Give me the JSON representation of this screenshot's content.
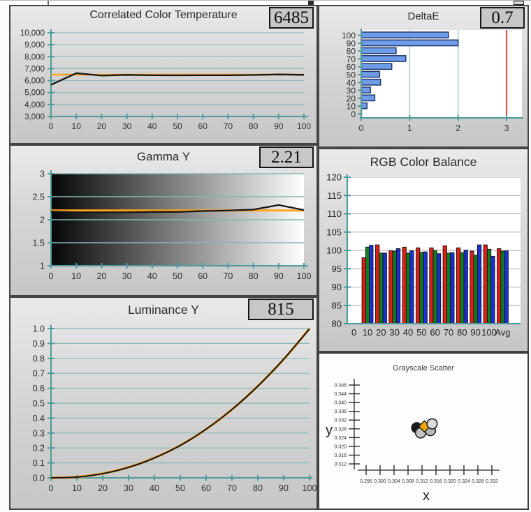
{
  "top_strip": {
    "description": "clipped bottom edge of toolbar above report"
  },
  "panels": {
    "cct": {
      "title": "Correlated Color Temperature",
      "value": "6485"
    },
    "deltae": {
      "title": "DeltaE",
      "value": "0.7"
    },
    "gamma": {
      "title": "Gamma Y",
      "value": "2.21"
    },
    "rgb": {
      "title": "RGB Color Balance"
    },
    "luminance": {
      "title": "Luminance Y",
      "value": "815"
    },
    "scatter": {
      "title": "Grayscale Scatter",
      "xlabel": "x",
      "ylabel": "y"
    }
  },
  "colors": {
    "teal_axis": "#4f9a9a",
    "teal_grid": "#85b7b7",
    "orange_target": "#ffa51e",
    "black_line": "#161616",
    "bar_blue": "#6f9ce8",
    "bar_blue_border": "#20396b",
    "ref_red": "#e0504d",
    "grid_gray": "#a9a9a9",
    "label_dark": "#2d2d2d",
    "scatter_axis": "#2b2b2b"
  },
  "chart_data": [
    {
      "id": "cct",
      "type": "line",
      "title": "Correlated Color Temperature",
      "value_box": "6485",
      "xlabel_ticks": [
        0,
        10,
        20,
        30,
        40,
        50,
        60,
        70,
        80,
        90,
        100
      ],
      "ytick_labels": [
        "10,000",
        "9,000",
        "8,000",
        "7,000",
        "6,000",
        "5,000",
        "4,000",
        "3,000"
      ],
      "yticks": [
        10000,
        9000,
        8000,
        7000,
        6000,
        5000,
        4000,
        3000
      ],
      "ylim": [
        3000,
        10000
      ],
      "xlim": [
        0,
        100
      ],
      "x": [
        0,
        10,
        20,
        30,
        40,
        50,
        60,
        70,
        80,
        90,
        100
      ],
      "measured": [
        5650,
        6620,
        6420,
        6480,
        6450,
        6440,
        6450,
        6450,
        6470,
        6520,
        6485
      ],
      "target_line": 6500
    },
    {
      "id": "deltae",
      "type": "bar-horizontal",
      "title": "DeltaE",
      "value_box": "0.7",
      "categories": [
        "100",
        "90",
        "80",
        "70",
        "60",
        "50",
        "40",
        "30",
        "20",
        "10",
        "0"
      ],
      "values": [
        1.8,
        2.0,
        0.72,
        0.92,
        0.63,
        0.38,
        0.4,
        0.19,
        0.28,
        0.12,
        0
      ],
      "xlim": [
        0,
        3
      ],
      "xticks": [
        0,
        1,
        2,
        3
      ],
      "tolerance_line": 3
    },
    {
      "id": "gamma",
      "type": "line",
      "title": "Gamma Y",
      "value_box": "2.21",
      "ytick_labels": [
        "3",
        "2.5",
        "2",
        "1.5",
        "1"
      ],
      "yticks": [
        3,
        2.5,
        2,
        1.5,
        1
      ],
      "ylim": [
        1,
        3
      ],
      "xlim": [
        0,
        100
      ],
      "xlabel_ticks": [
        0,
        10,
        20,
        30,
        40,
        50,
        60,
        70,
        80,
        90,
        100
      ],
      "x": [
        0,
        10,
        20,
        30,
        40,
        50,
        60,
        70,
        80,
        90,
        100
      ],
      "measured": [
        2.18,
        2.16,
        2.16,
        2.16,
        2.17,
        2.17,
        2.19,
        2.2,
        2.22,
        2.32,
        2.21
      ],
      "target_line": 2.2,
      "plot_background": "black-to-white horizontal gradient"
    },
    {
      "id": "rgb",
      "type": "grouped-bar",
      "title": "RGB Color Balance",
      "categories": [
        "0",
        "10",
        "20",
        "30",
        "40",
        "50",
        "60",
        "70",
        "80",
        "90",
        "100",
        "Avg"
      ],
      "ylim": [
        80,
        120
      ],
      "yticks": [
        120,
        115,
        110,
        105,
        100,
        95,
        90,
        85,
        80
      ],
      "series": [
        {
          "name": "Red",
          "color": "#dd1f15",
          "values": [
            null,
            98.0,
            101.5,
            99.9,
            100.9,
            100.7,
            100.7,
            101.3,
            100.7,
            99.8,
            101.5,
            100.5
          ]
        },
        {
          "name": "Green",
          "color": "#0f7d20",
          "values": [
            null,
            100.9,
            99.3,
            99.8,
            99.3,
            99.5,
            100.0,
            99.3,
            99.4,
            98.7,
            100.3,
            99.8
          ]
        },
        {
          "name": "Blue",
          "color": "#1b2fd4",
          "values": [
            null,
            101.4,
            99.3,
            100.5,
            99.9,
            99.6,
            99.1,
            99.4,
            100.1,
            101.5,
            98.4,
            99.9
          ]
        }
      ]
    },
    {
      "id": "luminance",
      "type": "line",
      "title": "Luminance Y",
      "value_box": "815",
      "ytick_labels": [
        "1.0",
        "0.9",
        "0.8",
        "0.7",
        "0.6",
        "0.5",
        "0.4",
        "0.3",
        "0.2",
        "0.1",
        "0.0"
      ],
      "yticks": [
        1.0,
        0.9,
        0.8,
        0.7,
        0.6,
        0.5,
        0.4,
        0.3,
        0.2,
        0.1,
        0.0
      ],
      "ylim": [
        0,
        1
      ],
      "xlim": [
        0,
        100
      ],
      "xlabel_ticks": [
        0,
        10,
        20,
        30,
        40,
        50,
        60,
        70,
        80,
        90,
        100
      ],
      "x": [
        0,
        10,
        20,
        30,
        40,
        50,
        60,
        70,
        80,
        90,
        100
      ],
      "measured": [
        0,
        0.005,
        0.028,
        0.07,
        0.133,
        0.217,
        0.326,
        0.458,
        0.614,
        0.795,
        0.998
      ],
      "target": [
        0,
        0.006,
        0.029,
        0.071,
        0.134,
        0.218,
        0.325,
        0.457,
        0.615,
        0.793,
        1.0
      ]
    },
    {
      "id": "scatter",
      "type": "scatter",
      "title": "Grayscale Scatter",
      "xlabel": "x",
      "ylabel": "y",
      "xtick_labels": [
        "0.296",
        "0.300",
        "0.304",
        "0.308",
        "0.312",
        "0.316",
        "0.320",
        "0.324",
        "0.328",
        "0.332"
      ],
      "ytick_labels": [
        "0.348",
        "0.344",
        "0.340",
        "0.336",
        "0.332",
        "0.328",
        "0.324",
        "0.320",
        "0.316",
        "0.312"
      ],
      "xlim": [
        0.296,
        0.332
      ],
      "ylim": [
        0.312,
        0.348
      ],
      "points": [
        {
          "x": 0.3105,
          "y": 0.3285,
          "color": "#1a1a1a",
          "shape": "circle",
          "name": "point-dark"
        },
        {
          "x": 0.3116,
          "y": 0.3262,
          "color": "#c4c4c4",
          "shape": "circle",
          "name": "point-gray-low"
        },
        {
          "x": 0.3144,
          "y": 0.3272,
          "color": "#b9b9b9",
          "shape": "circle",
          "name": "point-gray-right"
        },
        {
          "x": 0.3127,
          "y": 0.3291,
          "color": "#f7a600",
          "shape": "diamond",
          "name": "point-orange-target"
        },
        {
          "x": 0.3149,
          "y": 0.3303,
          "color": "#d9d9d9",
          "shape": "circle",
          "name": "point-gray-high"
        }
      ]
    }
  ]
}
